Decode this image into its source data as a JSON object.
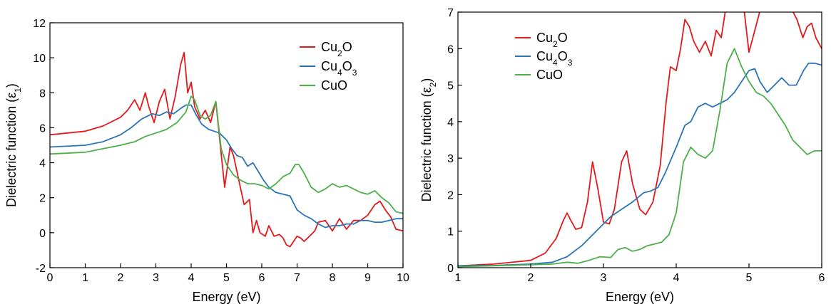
{
  "chart_data": [
    {
      "type": "line",
      "xlabel": "Energy (eV)",
      "ylabel": "Dielectric function (ε",
      "ylabel_sub": "1",
      "ylabel_end": ")",
      "xlim": [
        0,
        10
      ],
      "ylim": [
        -2,
        12
      ],
      "xticks": [
        0,
        1,
        2,
        3,
        4,
        5,
        6,
        7,
        8,
        9,
        10
      ],
      "yticks": [
        -2,
        0,
        2,
        4,
        6,
        8,
        10,
        12
      ],
      "grid": false,
      "legend_position": "top-right",
      "series": [
        {
          "name": "Cu2O",
          "label_parts": [
            [
              "Cu",
              ""
            ],
            [
              "2",
              "sub"
            ],
            [
              "O",
              ""
            ]
          ],
          "color": "#e31a1c",
          "x": [
            0,
            1,
            1.5,
            2,
            2.2,
            2.4,
            2.55,
            2.7,
            2.8,
            2.95,
            3.1,
            3.25,
            3.4,
            3.55,
            3.7,
            3.8,
            3.9,
            4.0,
            4.1,
            4.25,
            4.4,
            4.55,
            4.7,
            4.85,
            4.95,
            5.1,
            5.2,
            5.35,
            5.5,
            5.65,
            5.75,
            5.85,
            5.95,
            6.1,
            6.2,
            6.35,
            6.5,
            6.6,
            6.7,
            6.8,
            6.9,
            7.0,
            7.1,
            7.2,
            7.35,
            7.5,
            7.6,
            7.8,
            8.0,
            8.2,
            8.4,
            8.6,
            8.8,
            9.0,
            9.2,
            9.35,
            9.5,
            9.65,
            9.8,
            10.0
          ],
          "y": [
            5.6,
            5.8,
            6.1,
            6.6,
            7.0,
            7.6,
            7.0,
            8.0,
            7.2,
            6.3,
            7.5,
            8.2,
            6.5,
            7.8,
            9.6,
            10.3,
            8.0,
            8.6,
            7.2,
            6.5,
            7.0,
            6.3,
            7.5,
            4.5,
            2.6,
            4.9,
            4.4,
            3.0,
            1.6,
            1.9,
            0.0,
            0.7,
            0.0,
            -0.2,
            0.4,
            -0.2,
            -0.1,
            -0.3,
            -0.7,
            -0.8,
            -0.5,
            -0.2,
            -0.3,
            -0.5,
            -0.2,
            0.1,
            0.6,
            0.7,
            0.1,
            0.8,
            0.2,
            0.7,
            0.7,
            1.0,
            1.6,
            1.8,
            1.3,
            0.9,
            0.2,
            0.1
          ]
        },
        {
          "name": "Cu4O3",
          "label_parts": [
            [
              "Cu",
              ""
            ],
            [
              "4",
              "sub"
            ],
            [
              "O",
              ""
            ],
            [
              "3",
              "sub"
            ]
          ],
          "color": "#2b74b6",
          "x": [
            0,
            1,
            1.5,
            2,
            2.3,
            2.6,
            2.9,
            3.1,
            3.3,
            3.5,
            3.7,
            3.85,
            4.0,
            4.15,
            4.3,
            4.5,
            4.65,
            4.8,
            5.0,
            5.15,
            5.3,
            5.45,
            5.6,
            5.75,
            5.9,
            6.05,
            6.2,
            6.4,
            6.6,
            6.8,
            7.0,
            7.2,
            7.4,
            7.6,
            7.8,
            8.0,
            8.2,
            8.4,
            8.6,
            8.8,
            9.0,
            9.2,
            9.4,
            9.6,
            9.8,
            10.0
          ],
          "y": [
            4.9,
            5.0,
            5.2,
            5.6,
            6.0,
            6.5,
            6.8,
            6.7,
            6.9,
            6.8,
            7.1,
            7.3,
            7.3,
            6.7,
            6.2,
            5.9,
            5.8,
            5.7,
            5.3,
            4.8,
            4.4,
            4.3,
            3.8,
            4.0,
            3.5,
            3.0,
            2.6,
            2.3,
            2.2,
            2.1,
            1.3,
            1.0,
            0.8,
            0.5,
            0.3,
            0.4,
            0.4,
            0.5,
            0.5,
            0.7,
            0.7,
            0.6,
            0.6,
            0.7,
            0.8,
            0.8
          ]
        },
        {
          "name": "CuO",
          "label_parts": [
            [
              "CuO",
              ""
            ]
          ],
          "color": "#4daf4a",
          "x": [
            0,
            1,
            1.5,
            2,
            2.4,
            2.7,
            3.0,
            3.3,
            3.6,
            3.85,
            4.0,
            4.1,
            4.25,
            4.4,
            4.55,
            4.7,
            4.85,
            5.0,
            5.2,
            5.4,
            5.6,
            5.8,
            6.0,
            6.2,
            6.4,
            6.6,
            6.8,
            6.95,
            7.05,
            7.2,
            7.4,
            7.6,
            7.8,
            8.0,
            8.2,
            8.4,
            8.6,
            8.8,
            9.0,
            9.2,
            9.4,
            9.6,
            9.8,
            10.0
          ],
          "y": [
            4.5,
            4.6,
            4.8,
            5.0,
            5.2,
            5.5,
            5.7,
            5.9,
            6.3,
            6.9,
            7.8,
            7.6,
            6.7,
            6.5,
            6.7,
            7.5,
            4.8,
            3.9,
            3.3,
            3.0,
            2.8,
            2.8,
            2.7,
            2.5,
            2.8,
            3.2,
            3.4,
            3.9,
            3.9,
            3.4,
            2.6,
            2.3,
            2.5,
            2.8,
            2.6,
            2.7,
            2.5,
            2.3,
            2.2,
            2.4,
            2.0,
            1.7,
            1.2,
            1.1
          ]
        }
      ]
    },
    {
      "type": "line",
      "xlabel": "Energy (eV)",
      "ylabel": "Dielectric function (ε",
      "ylabel_sub": "2",
      "ylabel_end": ")",
      "xlim": [
        1,
        6
      ],
      "ylim": [
        0,
        7
      ],
      "xticks": [
        1,
        2,
        3,
        4,
        5,
        6
      ],
      "yticks": [
        0,
        1,
        2,
        3,
        4,
        5,
        6,
        7
      ],
      "grid": false,
      "legend_position": "top-left",
      "series": [
        {
          "name": "Cu2O",
          "label_parts": [
            [
              "Cu",
              ""
            ],
            [
              "2",
              "sub"
            ],
            [
              "O",
              ""
            ]
          ],
          "color": "#e31a1c",
          "x": [
            1,
            1.5,
            2.0,
            2.2,
            2.35,
            2.45,
            2.5,
            2.55,
            2.62,
            2.7,
            2.78,
            2.85,
            2.92,
            3.0,
            3.08,
            3.15,
            3.25,
            3.32,
            3.4,
            3.5,
            3.58,
            3.68,
            3.78,
            3.86,
            3.92,
            4.0,
            4.06,
            4.12,
            4.18,
            4.24,
            4.32,
            4.4,
            4.48,
            4.55,
            4.62,
            4.68,
            4.74,
            4.8,
            4.86,
            4.93,
            5.0,
            5.08,
            5.16,
            5.25,
            5.32,
            5.38,
            5.48,
            5.58,
            5.66,
            5.74,
            5.8,
            5.86,
            5.92,
            6.0
          ],
          "y": [
            0.05,
            0.1,
            0.2,
            0.4,
            0.8,
            1.3,
            1.5,
            1.3,
            1.05,
            1.1,
            1.8,
            2.9,
            2.2,
            1.25,
            1.2,
            1.6,
            2.9,
            3.2,
            2.3,
            1.6,
            1.45,
            1.8,
            2.8,
            4.5,
            5.5,
            5.4,
            6.0,
            6.8,
            6.6,
            6.2,
            5.9,
            6.2,
            5.8,
            6.5,
            6.3,
            7.1,
            7.1,
            7.1,
            7.1,
            7.1,
            5.9,
            6.5,
            7.1,
            7.1,
            7.1,
            7.1,
            7.1,
            7.1,
            6.8,
            6.3,
            6.6,
            6.7,
            6.3,
            6.0
          ]
        },
        {
          "name": "Cu4O3",
          "label_parts": [
            [
              "Cu",
              ""
            ],
            [
              "4",
              "sub"
            ],
            [
              "O",
              ""
            ],
            [
              "3",
              "sub"
            ]
          ],
          "color": "#2b74b6",
          "x": [
            1,
            1.5,
            2.0,
            2.3,
            2.5,
            2.7,
            2.9,
            3.1,
            3.25,
            3.4,
            3.55,
            3.65,
            3.75,
            3.85,
            4.0,
            4.12,
            4.2,
            4.3,
            4.4,
            4.5,
            4.6,
            4.7,
            4.8,
            4.9,
            5.0,
            5.08,
            5.15,
            5.25,
            5.35,
            5.45,
            5.55,
            5.65,
            5.75,
            5.82,
            5.9,
            6.0
          ],
          "y": [
            0.05,
            0.06,
            0.1,
            0.15,
            0.3,
            0.6,
            1.0,
            1.4,
            1.6,
            1.8,
            2.05,
            2.1,
            2.2,
            2.6,
            3.3,
            3.9,
            4.0,
            4.4,
            4.5,
            4.4,
            4.5,
            4.6,
            4.8,
            5.1,
            5.4,
            5.45,
            5.1,
            4.8,
            5.0,
            5.2,
            5.0,
            5.0,
            5.4,
            5.6,
            5.6,
            5.55
          ]
        },
        {
          "name": "CuO",
          "label_parts": [
            [
              "CuO",
              ""
            ]
          ],
          "color": "#4daf4a",
          "x": [
            1,
            1.5,
            2.0,
            2.3,
            2.5,
            2.65,
            2.8,
            2.95,
            3.1,
            3.2,
            3.3,
            3.4,
            3.5,
            3.6,
            3.7,
            3.8,
            3.9,
            4.0,
            4.1,
            4.2,
            4.3,
            4.4,
            4.5,
            4.6,
            4.7,
            4.8,
            4.9,
            5.0,
            5.1,
            5.2,
            5.3,
            5.4,
            5.5,
            5.6,
            5.7,
            5.8,
            5.9,
            6.0
          ],
          "y": [
            0.03,
            0.05,
            0.08,
            0.1,
            0.15,
            0.12,
            0.2,
            0.3,
            0.28,
            0.5,
            0.55,
            0.45,
            0.5,
            0.6,
            0.65,
            0.7,
            0.9,
            1.5,
            2.9,
            3.3,
            3.1,
            3.0,
            3.2,
            4.3,
            5.6,
            6.0,
            5.5,
            5.1,
            4.8,
            4.7,
            4.5,
            4.2,
            3.9,
            3.5,
            3.3,
            3.1,
            3.2,
            3.2
          ]
        }
      ]
    }
  ]
}
